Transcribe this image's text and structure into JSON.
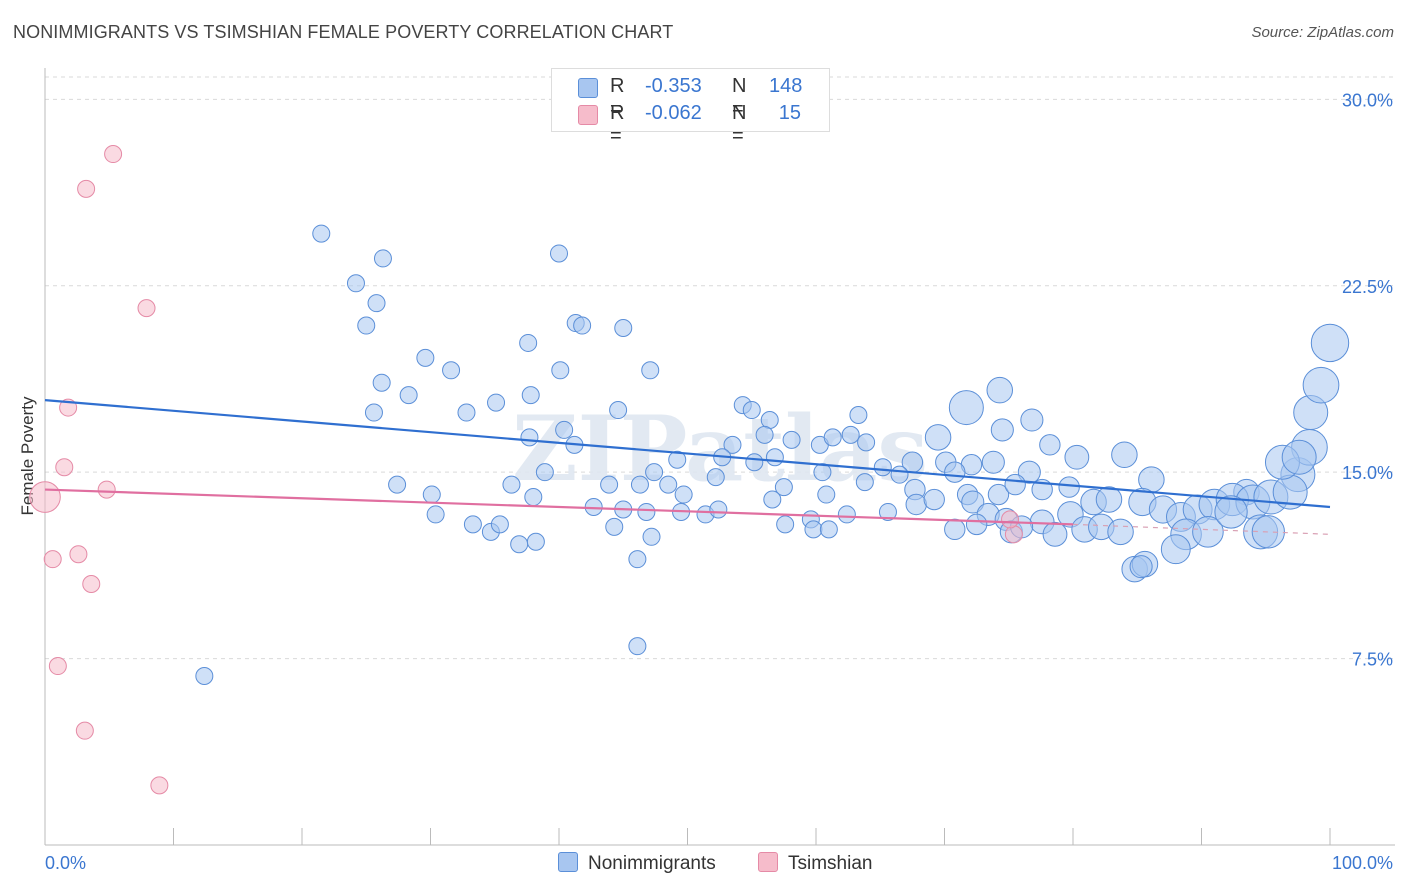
{
  "title": "NONIMMIGRANTS VS TSIMSHIAN FEMALE POVERTY CORRELATION CHART",
  "source": "Source: ZipAtlas.com",
  "watermark": "ZIPatlas",
  "legend": {
    "rows": [
      {
        "r_label": "R =",
        "r_value": "-0.353",
        "n_label": "N =",
        "n_value": "148",
        "color": "#a8c6f0",
        "stroke": "#5b8fd8"
      },
      {
        "r_label": "R =",
        "r_value": "-0.062",
        "n_label": "N =",
        "n_value": "15",
        "color": "#f6bccb",
        "stroke": "#e58aa6"
      }
    ]
  },
  "bottom_legend": [
    "Nonimmigrants",
    "Tsimshian"
  ],
  "chart_data": {
    "type": "scatter",
    "title": "NONIMMIGRANTS VS TSIMSHIAN FEMALE POVERTY CORRELATION CHART",
    "xlabel": "",
    "ylabel": "Female Poverty",
    "xlim": [
      0,
      100
    ],
    "ylim": [
      0,
      30.9
    ],
    "x_tick_labels": [
      "0.0%",
      "100.0%"
    ],
    "y_ticks": [
      7.5,
      15.0,
      22.5,
      30.0
    ],
    "y_tick_labels": [
      "7.5%",
      "15.0%",
      "22.5%",
      "30.0%"
    ],
    "colors": {
      "nonimmigrants": "#5b8fd8",
      "nonimmigrants_fill": "#a8c6f0",
      "tsimshian": "#e58aa6",
      "tsimshian_fill": "#f6bccb",
      "blue_line": "#2f6fd0",
      "pink_line": "#e06fa0",
      "axis_label": "#3a76d0"
    },
    "series": [
      {
        "name": "Nonimmigrants",
        "trend": {
          "x": [
            0,
            100
          ],
          "y": [
            17.9,
            13.6
          ]
        },
        "points": [
          [
            21.5,
            24.6,
            1
          ],
          [
            26.3,
            23.6,
            1
          ],
          [
            24.2,
            22.6,
            1
          ],
          [
            25.8,
            21.8,
            1
          ],
          [
            25.0,
            20.9,
            1
          ],
          [
            40.0,
            23.8,
            1
          ],
          [
            41.3,
            21.0,
            1
          ],
          [
            41.8,
            20.9,
            1
          ],
          [
            45.0,
            20.8,
            1
          ],
          [
            29.6,
            19.6,
            1
          ],
          [
            31.6,
            19.1,
            1
          ],
          [
            37.6,
            20.2,
            1
          ],
          [
            40.1,
            19.1,
            1
          ],
          [
            47.1,
            19.1,
            1
          ],
          [
            26.2,
            18.6,
            1
          ],
          [
            28.3,
            18.1,
            1
          ],
          [
            37.8,
            18.1,
            1
          ],
          [
            35.1,
            17.8,
            1
          ],
          [
            25.6,
            17.4,
            1
          ],
          [
            32.8,
            17.4,
            1
          ],
          [
            44.6,
            17.5,
            1
          ],
          [
            54.3,
            17.7,
            1
          ],
          [
            55.0,
            17.5,
            1
          ],
          [
            56.4,
            17.1,
            1
          ],
          [
            63.3,
            17.3,
            1
          ],
          [
            71.7,
            17.6,
            2
          ],
          [
            74.3,
            18.3,
            1.5
          ],
          [
            76.8,
            17.1,
            1.3
          ],
          [
            40.4,
            16.7,
            1
          ],
          [
            37.7,
            16.4,
            1
          ],
          [
            41.2,
            16.1,
            1
          ],
          [
            53.5,
            16.1,
            1
          ],
          [
            56.0,
            16.5,
            1
          ],
          [
            58.1,
            16.3,
            1
          ],
          [
            60.3,
            16.1,
            1
          ],
          [
            61.3,
            16.4,
            1
          ],
          [
            62.7,
            16.5,
            1
          ],
          [
            63.9,
            16.2,
            1
          ],
          [
            69.5,
            16.4,
            1.5
          ],
          [
            74.5,
            16.7,
            1.3
          ],
          [
            78.2,
            16.1,
            1.2
          ],
          [
            55.2,
            15.4,
            1
          ],
          [
            56.8,
            15.6,
            1
          ],
          [
            52.7,
            15.6,
            1
          ],
          [
            49.2,
            15.5,
            1
          ],
          [
            65.2,
            15.2,
            1
          ],
          [
            67.5,
            15.4,
            1.2
          ],
          [
            70.1,
            15.4,
            1.2
          ],
          [
            72.1,
            15.3,
            1.2
          ],
          [
            73.8,
            15.4,
            1.3
          ],
          [
            76.6,
            15.0,
            1.3
          ],
          [
            80.3,
            15.6,
            1.4
          ],
          [
            84.0,
            15.7,
            1.5
          ],
          [
            38.9,
            15.0,
            1
          ],
          [
            47.4,
            15.0,
            1
          ],
          [
            36.3,
            14.5,
            1
          ],
          [
            52.2,
            14.8,
            1
          ],
          [
            60.5,
            15.0,
            1
          ],
          [
            66.5,
            14.9,
            1
          ],
          [
            70.8,
            15.0,
            1.2
          ],
          [
            27.4,
            14.5,
            1
          ],
          [
            30.1,
            14.1,
            1
          ],
          [
            38.0,
            14.0,
            1
          ],
          [
            43.9,
            14.5,
            1
          ],
          [
            46.3,
            14.5,
            1
          ],
          [
            48.5,
            14.5,
            1
          ],
          [
            49.7,
            14.1,
            1
          ],
          [
            57.5,
            14.4,
            1
          ],
          [
            60.8,
            14.1,
            1
          ],
          [
            63.8,
            14.6,
            1
          ],
          [
            67.7,
            14.3,
            1.2
          ],
          [
            71.8,
            14.1,
            1.2
          ],
          [
            74.2,
            14.1,
            1.2
          ],
          [
            75.5,
            14.5,
            1.2
          ],
          [
            77.6,
            14.3,
            1.2
          ],
          [
            79.7,
            14.4,
            1.2
          ],
          [
            86.1,
            14.7,
            1.5
          ],
          [
            93.5,
            14.2,
            1.5
          ],
          [
            97.5,
            14.9,
            2
          ],
          [
            30.4,
            13.3,
            1
          ],
          [
            33.3,
            12.9,
            1
          ],
          [
            34.7,
            12.6,
            1
          ],
          [
            35.4,
            12.9,
            1
          ],
          [
            42.7,
            13.6,
            1
          ],
          [
            45.0,
            13.5,
            1
          ],
          [
            46.8,
            13.4,
            1
          ],
          [
            49.5,
            13.4,
            1
          ],
          [
            51.4,
            13.3,
            1
          ],
          [
            52.4,
            13.5,
            1
          ],
          [
            56.6,
            13.9,
            1
          ],
          [
            59.6,
            13.1,
            1
          ],
          [
            62.4,
            13.3,
            1
          ],
          [
            65.6,
            13.4,
            1
          ],
          [
            67.8,
            13.7,
            1.2
          ],
          [
            69.2,
            13.9,
            1.2
          ],
          [
            72.2,
            13.8,
            1.3
          ],
          [
            73.4,
            13.3,
            1.3
          ],
          [
            74.8,
            13.1,
            1.3
          ],
          [
            77.6,
            13.0,
            1.4
          ],
          [
            79.8,
            13.3,
            1.5
          ],
          [
            81.6,
            13.8,
            1.5
          ],
          [
            82.8,
            13.9,
            1.5
          ],
          [
            85.4,
            13.8,
            1.6
          ],
          [
            87.0,
            13.5,
            1.6
          ],
          [
            88.4,
            13.2,
            1.7
          ],
          [
            89.7,
            13.5,
            1.7
          ],
          [
            91.0,
            13.7,
            1.8
          ],
          [
            92.4,
            13.9,
            1.9
          ],
          [
            94.0,
            13.8,
            2
          ],
          [
            95.4,
            14.0,
            2
          ],
          [
            96.9,
            14.2,
            2
          ],
          [
            36.9,
            12.1,
            1
          ],
          [
            38.2,
            12.2,
            1
          ],
          [
            44.3,
            12.8,
            1
          ],
          [
            47.2,
            12.4,
            1
          ],
          [
            57.6,
            12.9,
            1
          ],
          [
            59.8,
            12.7,
            1
          ],
          [
            61.0,
            12.7,
            1
          ],
          [
            70.8,
            12.7,
            1.2
          ],
          [
            72.5,
            12.9,
            1.2
          ],
          [
            75.2,
            12.6,
            1.3
          ],
          [
            76.0,
            12.8,
            1.3
          ],
          [
            78.6,
            12.5,
            1.4
          ],
          [
            80.9,
            12.7,
            1.5
          ],
          [
            82.2,
            12.8,
            1.5
          ],
          [
            83.7,
            12.6,
            1.5
          ],
          [
            88.8,
            12.5,
            1.8
          ],
          [
            90.5,
            12.6,
            1.8
          ],
          [
            94.6,
            12.6,
            2
          ],
          [
            88.0,
            11.9,
            1.7
          ],
          [
            46.1,
            11.5,
            1
          ],
          [
            84.8,
            11.1,
            1.5
          ],
          [
            85.6,
            11.3,
            1.5
          ],
          [
            98.4,
            16.0,
            2.1
          ],
          [
            98.5,
            17.4,
            2
          ],
          [
            99.3,
            18.5,
            2.1
          ],
          [
            100.0,
            20.2,
            2.2
          ],
          [
            96.3,
            15.4,
            2
          ],
          [
            97.6,
            15.6,
            2
          ],
          [
            12.4,
            6.8,
            1
          ],
          [
            46.1,
            8.0,
            1
          ],
          [
            85.3,
            11.2,
            1.3
          ],
          [
            92.3,
            13.4,
            1.9
          ],
          [
            95.2,
            12.6,
            1.9
          ]
        ]
      },
      {
        "name": "Tsimshian",
        "trend": {
          "x": [
            0,
            80
          ],
          "y": [
            14.3,
            12.9
          ]
        },
        "trend_dashed": {
          "x": [
            80,
            100
          ],
          "y": [
            12.9,
            12.5
          ]
        },
        "points": [
          [
            5.3,
            27.8,
            1
          ],
          [
            3.2,
            26.4,
            1
          ],
          [
            7.9,
            21.6,
            1
          ],
          [
            1.8,
            17.6,
            1
          ],
          [
            1.5,
            15.2,
            1
          ],
          [
            4.8,
            14.3,
            1
          ],
          [
            0.0,
            14.0,
            1.8
          ],
          [
            0.6,
            11.5,
            1
          ],
          [
            2.6,
            11.7,
            1
          ],
          [
            3.6,
            10.5,
            1
          ],
          [
            1.0,
            7.2,
            1
          ],
          [
            3.1,
            4.6,
            1
          ],
          [
            8.9,
            2.4,
            1
          ],
          [
            75.4,
            12.5,
            1
          ],
          [
            75.1,
            13.1,
            1
          ]
        ]
      }
    ]
  }
}
